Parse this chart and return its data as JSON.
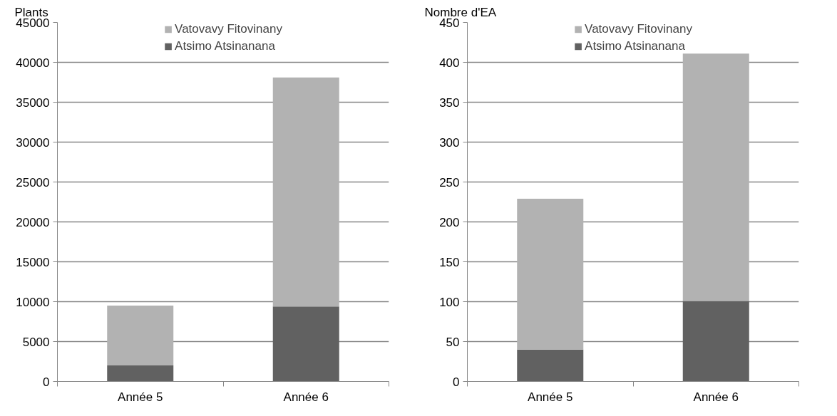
{
  "chart_data": [
    {
      "type": "bar",
      "stacked": true,
      "ylabel": "Plants",
      "categories": [
        "Année 5",
        "Année 6"
      ],
      "series": [
        {
          "name": "Atsimo Atsinanana",
          "color": "#616161",
          "values": [
            2000,
            9400
          ]
        },
        {
          "name": "Vatovavy Fitovinany",
          "color": "#b2b2b2",
          "values": [
            7500,
            28700
          ]
        }
      ],
      "ylim": [
        0,
        45000
      ],
      "yticks": [
        0,
        5000,
        10000,
        15000,
        20000,
        25000,
        30000,
        35000,
        40000,
        45000
      ],
      "grid": "y",
      "legend": "top"
    },
    {
      "type": "bar",
      "stacked": true,
      "ylabel": "Nombre d'EA",
      "categories": [
        "Année 5",
        "Année 6"
      ],
      "series": [
        {
          "name": "Atsimo Atsinanana",
          "color": "#616161",
          "values": [
            40,
            101
          ]
        },
        {
          "name": "Vatovavy Fitovinany",
          "color": "#b2b2b2",
          "values": [
            189,
            310
          ]
        }
      ],
      "ylim": [
        0,
        450
      ],
      "yticks": [
        0,
        50,
        100,
        150,
        200,
        250,
        300,
        350,
        400,
        450
      ],
      "grid": "y",
      "legend": "top"
    }
  ]
}
